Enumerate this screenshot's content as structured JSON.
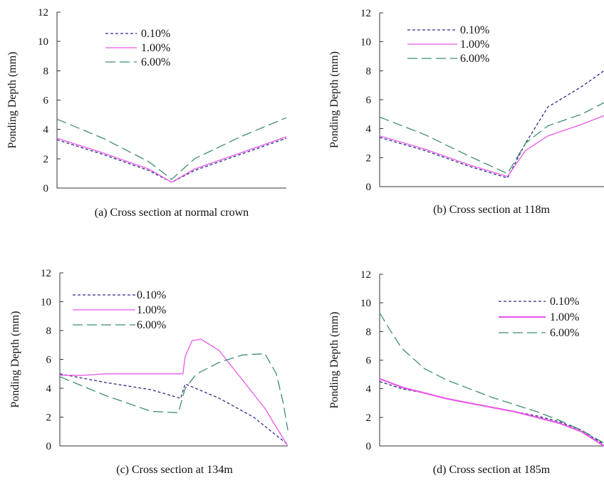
{
  "colors": {
    "s010": "#2b2b8a",
    "s100": "#e85ae8",
    "s600": "#3f8f6a"
  },
  "chart_data": [
    {
      "type": "line",
      "title": "(a) Cross section at normal crown",
      "ylabel": "Ponding Depth (mm)",
      "xlabel": "",
      "ylim": [
        0,
        12
      ],
      "yticks": [
        0,
        2,
        4,
        6,
        8,
        10,
        12
      ],
      "xlim": [
        0,
        1
      ],
      "legend_position": "top-left",
      "series": [
        {
          "name": "0.10%",
          "x": [
            0,
            0.2,
            0.4,
            0.5,
            0.6,
            0.8,
            1.0
          ],
          "values": [
            3.3,
            2.3,
            1.2,
            0.4,
            1.2,
            2.3,
            3.4
          ]
        },
        {
          "name": "1.00%",
          "x": [
            0,
            0.2,
            0.4,
            0.5,
            0.6,
            0.8,
            1.0
          ],
          "values": [
            3.4,
            2.4,
            1.3,
            0.4,
            1.3,
            2.4,
            3.5
          ]
        },
        {
          "name": "6.00%",
          "x": [
            0,
            0.2,
            0.4,
            0.5,
            0.6,
            0.8,
            1.0
          ],
          "values": [
            4.7,
            3.4,
            1.8,
            0.6,
            2.0,
            3.5,
            4.8
          ]
        }
      ]
    },
    {
      "type": "line",
      "title": "(b) Cross section at 118m",
      "ylabel": "Ponding Depth (mm)",
      "xlabel": "",
      "ylim": [
        0,
        12
      ],
      "yticks": [
        0,
        2,
        4,
        6,
        8,
        10,
        12
      ],
      "xlim": [
        0,
        1
      ],
      "legend_position": "top-left",
      "series": [
        {
          "name": "0.10%",
          "x": [
            0,
            0.2,
            0.4,
            0.57,
            0.65,
            0.75,
            0.9,
            1.0
          ],
          "values": [
            3.4,
            2.5,
            1.4,
            0.6,
            3.0,
            5.5,
            6.9,
            8.0
          ]
        },
        {
          "name": "1.00%",
          "x": [
            0,
            0.2,
            0.4,
            0.57,
            0.65,
            0.75,
            0.9,
            1.0
          ],
          "values": [
            3.5,
            2.6,
            1.5,
            0.7,
            2.5,
            3.5,
            4.3,
            4.9
          ]
        },
        {
          "name": "6.00%",
          "x": [
            0,
            0.2,
            0.4,
            0.57,
            0.65,
            0.75,
            0.9,
            1.0
          ],
          "values": [
            4.8,
            3.6,
            2.1,
            0.9,
            3.0,
            4.2,
            5.0,
            5.8
          ]
        }
      ]
    },
    {
      "type": "line",
      "title": "(c) Cross section at 134m",
      "ylabel": "Ponding Depth (mm)",
      "xlabel": "",
      "ylim": [
        0,
        12
      ],
      "yticks": [
        0,
        2,
        4,
        6,
        8,
        10,
        12
      ],
      "xlim": [
        0,
        1
      ],
      "legend_position": "top-left",
      "series": [
        {
          "name": "0.10%",
          "x": [
            0,
            0.2,
            0.4,
            0.53,
            0.55,
            0.7,
            0.85,
            1.0
          ],
          "values": [
            5.0,
            4.4,
            3.9,
            3.3,
            4.3,
            3.3,
            2.0,
            0.1
          ]
        },
        {
          "name": "1.00%",
          "x": [
            0,
            0.1,
            0.2,
            0.54,
            0.55,
            0.58,
            0.62,
            0.7,
            0.8,
            0.9,
            1.0
          ],
          "values": [
            4.9,
            4.9,
            5.0,
            5.0,
            6.2,
            7.3,
            7.4,
            6.6,
            4.6,
            2.6,
            0.0
          ]
        },
        {
          "name": "6.00%",
          "x": [
            0,
            0.2,
            0.4,
            0.52,
            0.55,
            0.6,
            0.7,
            0.8,
            0.9,
            0.95,
            0.98,
            1.0
          ],
          "values": [
            4.8,
            3.5,
            2.4,
            2.3,
            4.0,
            5.0,
            5.8,
            6.3,
            6.4,
            5.0,
            3.0,
            1.1
          ]
        }
      ]
    },
    {
      "type": "line",
      "title": "(d) Cross section at 185m",
      "ylabel": "Ponding Depth (mm)",
      "xlabel": "",
      "ylim": [
        0,
        12
      ],
      "yticks": [
        0,
        2,
        4,
        6,
        8,
        10,
        12
      ],
      "xlim": [
        0,
        1
      ],
      "legend_position": "top-right",
      "series": [
        {
          "name": "0.10%",
          "x": [
            0,
            0.1,
            0.2,
            0.3,
            0.4,
            0.5,
            0.6,
            0.7,
            0.8,
            0.9,
            1.0
          ],
          "values": [
            4.5,
            4.0,
            3.7,
            3.3,
            3.0,
            2.7,
            2.4,
            2.1,
            1.7,
            1.1,
            0.1
          ]
        },
        {
          "name": "1.00%",
          "x": [
            0,
            0.1,
            0.2,
            0.3,
            0.4,
            0.5,
            0.6,
            0.7,
            0.8,
            0.9,
            1.0
          ],
          "values": [
            4.7,
            4.1,
            3.7,
            3.3,
            3.0,
            2.7,
            2.4,
            2.0,
            1.6,
            1.0,
            0.0
          ]
        },
        {
          "name": "6.00%",
          "x": [
            0,
            0.05,
            0.1,
            0.2,
            0.3,
            0.4,
            0.5,
            0.6,
            0.7,
            0.8,
            0.9,
            1.0
          ],
          "values": [
            9.3,
            8.0,
            6.8,
            5.4,
            4.6,
            4.0,
            3.4,
            2.9,
            2.4,
            1.8,
            1.1,
            0.2
          ]
        }
      ]
    }
  ]
}
